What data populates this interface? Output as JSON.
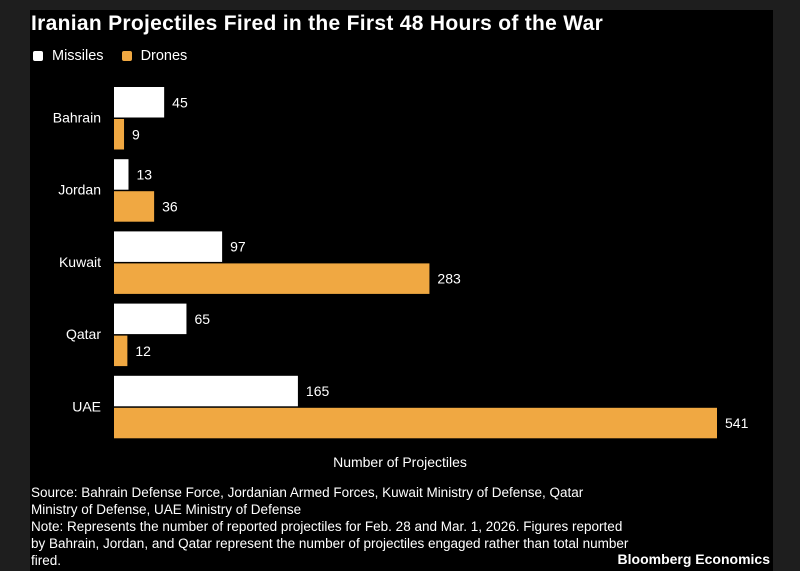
{
  "chart_data": {
    "type": "bar",
    "orientation": "horizontal",
    "title": "Iranian Projectiles Fired in the First 48 Hours of the War",
    "xlabel": "Number of Projectiles",
    "categories": [
      "Bahrain",
      "Jordan",
      "Kuwait",
      "Qatar",
      "UAE"
    ],
    "series": [
      {
        "name": "Missiles",
        "color": "#ffffff",
        "values": [
          45,
          13,
          97,
          65,
          165
        ]
      },
      {
        "name": "Drones",
        "color": "#f0a842",
        "values": [
          9,
          36,
          283,
          12,
          541
        ]
      }
    ],
    "xlim": [
      0,
      541
    ],
    "grid": false,
    "legend": "top-left",
    "data_labels": true
  },
  "source": "Source: Bahrain Defense Force, Jordanian Armed Forces, Kuwait Ministry of Defense, Qatar Ministry of Defense, UAE Ministry of Defense",
  "note": "Note: Represents the number of reported projectiles for Feb. 28 and Mar. 1, 2026. Figures reported by Bahrain, Jordan, and Qatar represent the number of projectiles engaged rather than total number fired.",
  "brand": "Bloomberg Economics"
}
